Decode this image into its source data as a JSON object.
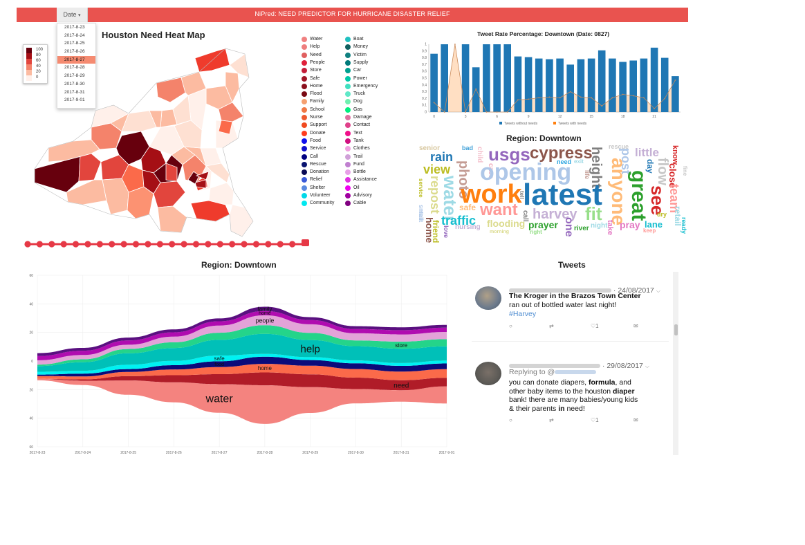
{
  "app": {
    "title": "NiPred: NEED PREDICTOR FOR HURRICANE DISASTER RELIEF",
    "accent": "#e9534f"
  },
  "date_dropdown": {
    "label": "Date",
    "caret": "▾",
    "options": [
      "2017-8-23",
      "2017-8-24",
      "2017-8-25",
      "2017-8-26",
      "2017-8-27",
      "2017-8-28",
      "2017-8-29",
      "2017-8-30",
      "2017-8-31",
      "2017-9-01"
    ],
    "selected": "2017-8-27"
  },
  "heatmap": {
    "title": "Houston Need Heat Map",
    "legend": [
      {
        "label": "100",
        "color": "#67000d"
      },
      {
        "label": "80",
        "color": "#a50f15"
      },
      {
        "label": "60",
        "color": "#e2453d"
      },
      {
        "label": "40",
        "color": "#f4836b"
      },
      {
        "label": "20",
        "color": "#fcbba1"
      },
      {
        "label": "0",
        "color": "#fff0ea"
      }
    ]
  },
  "time_slider": {
    "steps": 24,
    "current_step": 24,
    "color": "#e63946"
  },
  "need_key": {
    "col1": [
      {
        "label": "Water",
        "color": "#f08080"
      },
      {
        "label": "Help",
        "color": "#ee7d7d"
      },
      {
        "label": "Need",
        "color": "#e06060"
      },
      {
        "label": "People",
        "color": "#e0203b"
      },
      {
        "label": "Store",
        "color": "#c41e3a"
      },
      {
        "label": "Safe",
        "color": "#a01628"
      },
      {
        "label": "Home",
        "color": "#8b0f1c"
      },
      {
        "label": "Flood",
        "color": "#7a0a14"
      },
      {
        "label": "Family",
        "color": "#f5a070"
      },
      {
        "label": "School",
        "color": "#f07845"
      },
      {
        "label": "Nurse",
        "color": "#ee5a30"
      },
      {
        "label": "Support",
        "color": "#f04a20"
      },
      {
        "label": "Donate",
        "color": "#ff3c1e"
      },
      {
        "label": "Food",
        "color": "#1010ee"
      },
      {
        "label": "Service",
        "color": "#1010cc"
      },
      {
        "label": "Call",
        "color": "#000080"
      },
      {
        "label": "Rescue",
        "color": "#0a1470"
      },
      {
        "label": "Donation",
        "color": "#0a0a55"
      },
      {
        "label": "Relief",
        "color": "#3a5ad8"
      },
      {
        "label": "Shelter",
        "color": "#5a8ae0"
      },
      {
        "label": "Volunteer",
        "color": "#00d8e8"
      },
      {
        "label": "Community",
        "color": "#00e8f0"
      }
    ],
    "col2": [
      {
        "label": "Boat",
        "color": "#20c0c0"
      },
      {
        "label": "Money",
        "color": "#106060"
      },
      {
        "label": "Victim",
        "color": "#108080"
      },
      {
        "label": "Supply",
        "color": "#007a7a"
      },
      {
        "label": "Car",
        "color": "#00a090"
      },
      {
        "label": "Power",
        "color": "#00c8a8"
      },
      {
        "label": "Emergency",
        "color": "#40e0c0"
      },
      {
        "label": "Truck",
        "color": "#60e8c8"
      },
      {
        "label": "Dog",
        "color": "#70f0b0"
      },
      {
        "label": "Gas",
        "color": "#00f080"
      },
      {
        "label": "Damage",
        "color": "#e070a0"
      },
      {
        "label": "Contact",
        "color": "#e0408a"
      },
      {
        "label": "Text",
        "color": "#f0108a"
      },
      {
        "label": "Tank",
        "color": "#d01080"
      },
      {
        "label": "Clothes",
        "color": "#f0a0e0"
      },
      {
        "label": "Trail",
        "color": "#d0a0d8"
      },
      {
        "label": "Fund",
        "color": "#c080d0"
      },
      {
        "label": "Bottle",
        "color": "#e8a0e8"
      },
      {
        "label": "Assistance",
        "color": "#e030e0"
      },
      {
        "label": "Oil",
        "color": "#f000f0"
      },
      {
        "label": "Advisory",
        "color": "#a000a0"
      },
      {
        "label": "Cable",
        "color": "#800080"
      }
    ]
  },
  "tweet_rate_chart": {
    "title": "Tweet Rate Percentage: Downtown (Date: 0827)",
    "legend_without": "Tweets without needs",
    "legend_with": "Tweets with needs",
    "color_without": "#1f77b4",
    "color_with": "#ff7f0e"
  },
  "wordcloud": {
    "title": "Region: Downtown",
    "words": [
      {
        "text": "senior",
        "color": "#d8c8a0"
      },
      {
        "text": "bad",
        "color": "#3fa0d8"
      },
      {
        "text": "rain",
        "color": "#1f77b4"
      },
      {
        "text": "child",
        "color": "#f4c0cc"
      },
      {
        "text": "case",
        "color": "#f0b0c0"
      },
      {
        "text": "usgs",
        "color": "#9467bd"
      },
      {
        "text": "cypress",
        "color": "#8c564b"
      },
      {
        "text": "need",
        "color": "#2ca5e0"
      },
      {
        "text": "exit",
        "color": "#9edae5"
      },
      {
        "text": "height",
        "color": "#7f7f7f"
      },
      {
        "text": "rescue",
        "color": "#c7c7c7"
      },
      {
        "text": "post",
        "color": "#aec7e8"
      },
      {
        "text": "little",
        "color": "#c5b0d5"
      },
      {
        "text": "know",
        "color": "#d62728"
      },
      {
        "text": "view",
        "color": "#bcbd22"
      },
      {
        "text": "opening",
        "color": "#aec7e8"
      },
      {
        "text": "life",
        "color": "#c49c94"
      },
      {
        "text": "anyone",
        "color": "#ffbb78"
      },
      {
        "text": "day",
        "color": "#1f77b4"
      },
      {
        "text": "flow",
        "color": "#c7c7c7"
      },
      {
        "text": "close",
        "color": "#d62728"
      },
      {
        "text": "fine",
        "color": "#c7c7c7"
      },
      {
        "text": "team",
        "color": "#ff9896"
      },
      {
        "text": "photo",
        "color": "#c49c94"
      },
      {
        "text": "repost",
        "color": "#dbdb8d"
      },
      {
        "text": "water",
        "color": "#9edae5"
      },
      {
        "text": "work",
        "color": "#ff7f0e"
      },
      {
        "text": "latest",
        "color": "#1f77b4"
      },
      {
        "text": "great",
        "color": "#2ca02c"
      },
      {
        "text": "see",
        "color": "#d62728"
      },
      {
        "text": "retail",
        "color": "#9edae5"
      },
      {
        "text": "service",
        "color": "#bcbd22"
      },
      {
        "text": "safe",
        "color": "#ffbb78"
      },
      {
        "text": "want",
        "color": "#ff9896"
      },
      {
        "text": "tell",
        "color": "#7f7f7f"
      },
      {
        "text": "harvey",
        "color": "#c5b0d5"
      },
      {
        "text": "fit",
        "color": "#98df8a"
      },
      {
        "text": "dry",
        "color": "#bcbd22"
      },
      {
        "text": "traffic",
        "color": "#17becf"
      },
      {
        "text": "call",
        "color": "#7f7f7f"
      },
      {
        "text": "pray",
        "color": "#e377c2"
      },
      {
        "text": "lane",
        "color": "#17becf"
      },
      {
        "text": "home",
        "color": "#8c564b"
      },
      {
        "text": "friend",
        "color": "#bcbd22"
      },
      {
        "text": "flooding",
        "color": "#dbdb8d"
      },
      {
        "text": "prayer",
        "color": "#2ca02c"
      },
      {
        "text": "one",
        "color": "#9467bd"
      },
      {
        "text": "night",
        "color": "#9edae5"
      },
      {
        "text": "take",
        "color": "#e377c2"
      },
      {
        "text": "keep",
        "color": "#ff9896"
      },
      {
        "text": "nursing",
        "color": "#c5b0d5"
      },
      {
        "text": "morning",
        "color": "#dbdb8d"
      },
      {
        "text": "right",
        "color": "#98df8a"
      },
      {
        "text": "river",
        "color": "#2ca02c"
      },
      {
        "text": "love",
        "color": "#9467bd"
      },
      {
        "text": "small",
        "color": "#aec7e8"
      },
      {
        "text": "ready",
        "color": "#17becf"
      },
      {
        "text": "first",
        "color": "#aec7e8"
      }
    ]
  },
  "stream": {
    "title": "Region: Downtown",
    "labels": [
      "family",
      "home",
      "people",
      "help",
      "safe",
      "food",
      "store",
      "home",
      "need",
      "water"
    ],
    "layers": [
      {
        "name": "water",
        "color": "#f4837f"
      },
      {
        "name": "need",
        "color": "#b01c28"
      },
      {
        "name": "home",
        "color": "#fb6a4a"
      },
      {
        "name": "food",
        "color": "#0b0b7a"
      },
      {
        "name": "safe",
        "color": "#00f2f2"
      },
      {
        "name": "help",
        "color": "#00c0b8"
      },
      {
        "name": "store",
        "color": "#24d48a"
      },
      {
        "name": "people",
        "color": "#e3a3d8"
      },
      {
        "name": "home",
        "color": "#b00cb0"
      },
      {
        "name": "family",
        "color": "#5a1080"
      }
    ]
  },
  "chart_data": [
    {
      "type": "bar",
      "title": "Tweet Rate Percentage: Downtown (Date: 0827)",
      "categories": [
        "0",
        "1",
        "2",
        "3",
        "4",
        "5",
        "6",
        "7",
        "8",
        "9",
        "10",
        "11",
        "12",
        "13",
        "14",
        "15",
        "16",
        "17",
        "18",
        "19",
        "20",
        "21",
        "22",
        "23"
      ],
      "series": [
        {
          "name": "Tweets without needs",
          "values": [
            0.86,
            1,
            0,
            1,
            0.66,
            1,
            1,
            1,
            0.82,
            0.81,
            0.79,
            0.78,
            0.79,
            0.7,
            0.78,
            0.79,
            0.91,
            0.79,
            0.74,
            0.76,
            0.79,
            0.95,
            0.8,
            0.53
          ]
        },
        {
          "name": "Tweets with needs",
          "values": [
            0.14,
            0,
            1,
            0,
            0.34,
            0,
            0,
            0,
            0.18,
            0.19,
            0.21,
            0.22,
            0.21,
            0.3,
            0.22,
            0.21,
            0.09,
            0.21,
            0.26,
            0.24,
            0.21,
            0.05,
            0.2,
            0.47
          ]
        }
      ],
      "ylim": [
        0,
        1
      ],
      "yticks": [
        "0",
        "0.1",
        "0.2",
        "0.3",
        "0.4",
        "0.5",
        "0.6",
        "0.7",
        "0.8",
        "0.9",
        "1"
      ],
      "xticks": [
        "0",
        "3",
        "6",
        "9",
        "12",
        "15",
        "18",
        "21"
      ]
    },
    {
      "type": "area",
      "title": "Region: Downtown",
      "x": [
        "2017-8-23",
        "2017-8-24",
        "2017-8-25",
        "2017-8-26",
        "2017-8-27",
        "2017-8-28",
        "2017-8-29",
        "2017-8-30",
        "2017-8-31",
        "2017-9-01"
      ],
      "yticks": [
        "60",
        "40",
        "20",
        "0",
        "20",
        "40",
        "60"
      ],
      "ylim": [
        -60,
        60
      ],
      "series": [
        {
          "name": "water",
          "values": [
            1,
            3,
            10,
            14,
            20,
            27,
            18,
            10,
            8,
            12
          ]
        },
        {
          "name": "need",
          "values": [
            0,
            1,
            3,
            5,
            7,
            9,
            9,
            8,
            7,
            6
          ]
        },
        {
          "name": "home",
          "values": [
            2,
            2,
            3,
            4,
            5,
            6,
            6,
            6,
            6,
            6
          ]
        },
        {
          "name": "food",
          "values": [
            1,
            2,
            2,
            3,
            4,
            5,
            4,
            4,
            4,
            4
          ]
        },
        {
          "name": "safe",
          "values": [
            2,
            2,
            3,
            3,
            4,
            2,
            2,
            2,
            2,
            2
          ]
        },
        {
          "name": "help",
          "values": [
            4,
            6,
            8,
            9,
            11,
            14,
            12,
            10,
            10,
            10
          ]
        },
        {
          "name": "store",
          "values": [
            1,
            2,
            3,
            4,
            5,
            6,
            5,
            4,
            5,
            5
          ]
        },
        {
          "name": "people",
          "values": [
            3,
            3,
            3,
            4,
            5,
            7,
            6,
            5,
            5,
            5
          ]
        },
        {
          "name": "home",
          "values": [
            3,
            3,
            3,
            3,
            3,
            3,
            3,
            3,
            3,
            3
          ]
        },
        {
          "name": "family",
          "values": [
            2,
            2,
            2,
            2,
            2,
            3,
            2,
            2,
            2,
            2
          ]
        }
      ]
    }
  ],
  "tweets_panel": {
    "title": "Tweets",
    "tweets": [
      {
        "date": "· 24/08/2017",
        "text_lines": [
          "The Kroger in the Brazos Town Center",
          "ran out of bottled water last night!"
        ],
        "hashtag": "#Harvey",
        "likes": "1"
      },
      {
        "date": "· 29/08/2017",
        "reply_prefix": "Replying to @",
        "lines": [
          [
            "you can donate diapers, ",
            "formula",
            ", and"
          ],
          [
            "other baby items to the houston ",
            "diaper",
            ""
          ],
          [
            "bank! there are many babies/young kids",
            "",
            ""
          ],
          [
            "& their parents ",
            "in",
            " need!"
          ]
        ],
        "likes": "1"
      }
    ]
  }
}
